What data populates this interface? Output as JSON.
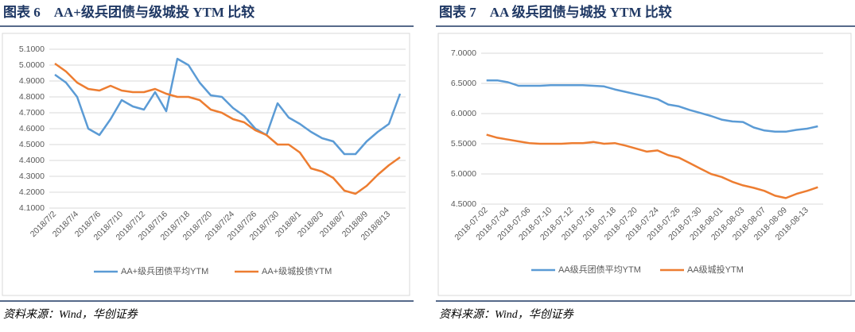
{
  "chart_data": [
    {
      "type": "line",
      "title": "图表 6　AA+级兵团债与级城投 YTM 比较",
      "source": "资料来源：Wind，华创证券",
      "categories": [
        "2018/7/2",
        null,
        "2018/7/4",
        null,
        "2018/7/6",
        null,
        "2018/7/10",
        null,
        "2018/7/12",
        null,
        "2018/7/16",
        null,
        "2018/7/18",
        null,
        "2018/7/20",
        null,
        "2018/7/24",
        null,
        "2018/7/26",
        null,
        "2018/7/30",
        null,
        "2018/8/1",
        null,
        "2018/8/3",
        null,
        "2018/8/7",
        null,
        "2018/8/9",
        null,
        "2018/8/13",
        null
      ],
      "series": [
        {
          "name": "AA+级兵团债平均YTM",
          "color": "#5b9bd5",
          "values": [
            4.94,
            4.89,
            4.8,
            4.6,
            4.56,
            4.66,
            4.78,
            4.74,
            4.72,
            4.83,
            4.71,
            5.04,
            5.0,
            4.89,
            4.81,
            4.8,
            4.73,
            4.68,
            4.6,
            4.56,
            4.76,
            4.67,
            4.63,
            4.58,
            4.54,
            4.52,
            4.44,
            4.44,
            4.52,
            4.58,
            4.63,
            4.82
          ]
        },
        {
          "name": "AA+级城投债YTM",
          "color": "#ed7d31",
          "values": [
            5.01,
            4.96,
            4.89,
            4.85,
            4.84,
            4.87,
            4.84,
            4.83,
            4.83,
            4.85,
            4.82,
            4.8,
            4.8,
            4.78,
            4.72,
            4.7,
            4.66,
            4.64,
            4.59,
            4.56,
            4.5,
            4.5,
            4.45,
            4.35,
            4.33,
            4.29,
            4.21,
            4.19,
            4.24,
            4.31,
            4.37,
            4.42
          ]
        }
      ],
      "ylim": [
        4.1,
        5.1
      ],
      "yticks": [
        {
          "value": 4.1,
          "label": "4.1000"
        },
        {
          "value": 4.2,
          "label": "4.2000"
        },
        {
          "value": 4.3,
          "label": "4.3000"
        },
        {
          "value": 4.4,
          "label": "4.4000"
        },
        {
          "value": 4.5,
          "label": "4.5000"
        },
        {
          "value": 4.6,
          "label": "4.6000"
        },
        {
          "value": 4.7,
          "label": "4.7000"
        },
        {
          "value": 4.8,
          "label": "4.8000"
        },
        {
          "value": 4.9,
          "label": "4.9000"
        },
        {
          "value": 5.0,
          "label": "5.0000"
        },
        {
          "value": 5.1,
          "label": "5.1000"
        }
      ],
      "grid": true,
      "legend": "bottom"
    },
    {
      "type": "line",
      "title": "图表 7　AA 级兵团债与城投 YTM 比较",
      "source": "资料来源：Wind，华创证券",
      "categories": [
        "2018-07-02",
        null,
        "2018-07-04",
        null,
        "2018-07-06",
        null,
        "2018-07-10",
        null,
        "2018-07-12",
        null,
        "2018-07-16",
        null,
        "2018-07-18",
        null,
        "2018-07-20",
        null,
        "2018-07-24",
        null,
        "2018-07-26",
        null,
        "2018-07-30",
        null,
        "2018-08-01",
        null,
        "2018-08-03",
        null,
        "2018-08-07",
        null,
        "2018-08-09",
        null,
        "2018-08-13",
        null
      ],
      "series": [
        {
          "name": "AA级兵团债平均YTM",
          "color": "#5b9bd5",
          "values": [
            6.55,
            6.55,
            6.52,
            6.46,
            6.46,
            6.46,
            6.47,
            6.47,
            6.47,
            6.47,
            6.46,
            6.45,
            6.4,
            6.36,
            6.32,
            6.28,
            6.24,
            6.15,
            6.12,
            6.06,
            6.01,
            5.96,
            5.9,
            5.87,
            5.86,
            5.77,
            5.72,
            5.7,
            5.7,
            5.73,
            5.75,
            5.79
          ]
        },
        {
          "name": "AA级城投YTM",
          "color": "#ed7d31",
          "values": [
            5.65,
            5.6,
            5.57,
            5.54,
            5.51,
            5.5,
            5.5,
            5.5,
            5.51,
            5.51,
            5.53,
            5.5,
            5.51,
            5.47,
            5.42,
            5.37,
            5.39,
            5.31,
            5.27,
            5.18,
            5.09,
            5.0,
            4.95,
            4.87,
            4.81,
            4.77,
            4.72,
            4.64,
            4.6,
            4.67,
            4.72,
            4.78
          ]
        }
      ],
      "ylim": [
        4.5,
        7.0
      ],
      "yticks": [
        {
          "value": 4.5,
          "label": "4.5000"
        },
        {
          "value": 5.0,
          "label": "5.0000"
        },
        {
          "value": 5.5,
          "label": "5.5000"
        },
        {
          "value": 6.0,
          "label": "6.0000"
        },
        {
          "value": 6.5,
          "label": "6.5000"
        },
        {
          "value": 7.0,
          "label": "7.0000"
        }
      ],
      "grid": true,
      "legend": "bottom"
    }
  ]
}
